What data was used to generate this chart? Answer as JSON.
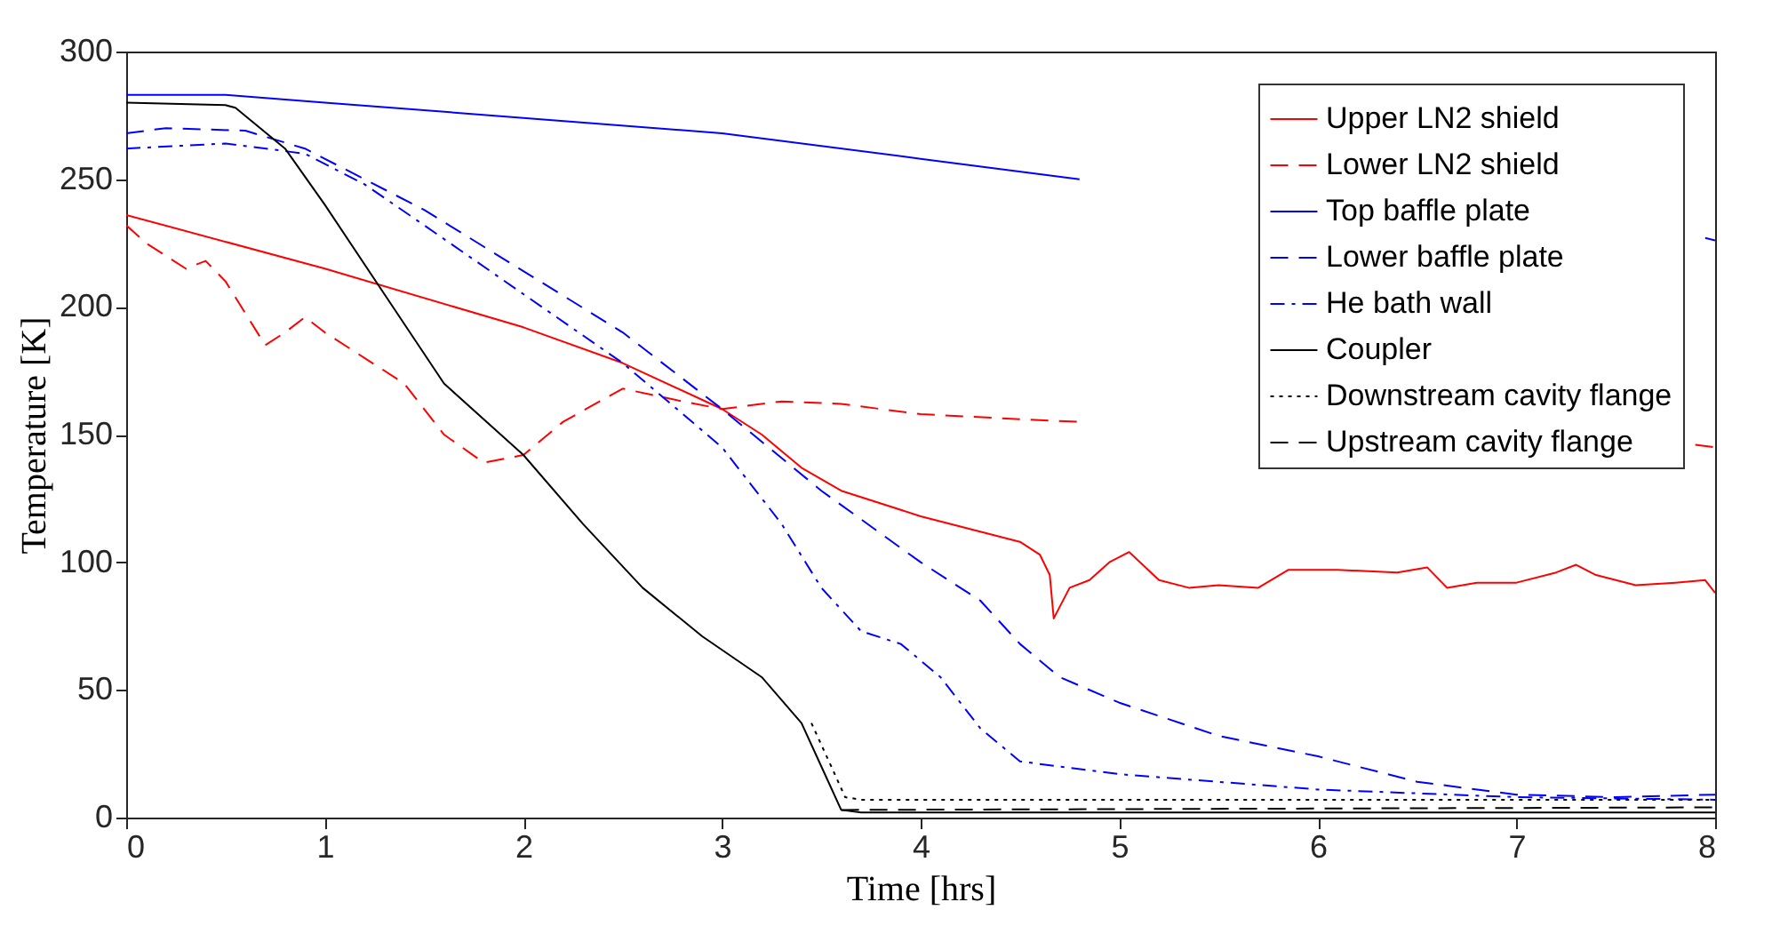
{
  "chart_data": {
    "type": "line",
    "xlabel": "Time [hrs]",
    "ylabel": "Temperature [K]",
    "xlim": [
      0,
      8
    ],
    "ylim": [
      0,
      300
    ],
    "xticks": [
      0,
      1,
      2,
      3,
      4,
      5,
      6,
      7,
      8
    ],
    "yticks": [
      0,
      50,
      100,
      150,
      200,
      250,
      300
    ],
    "grid": false,
    "legend": "top right",
    "marker": "none",
    "series": [
      {
        "name": "Upper LN2 shield",
        "color": "#ff0000",
        "line_style": "solid",
        "x": [
          0,
          1,
          2,
          2.5,
          3,
          3.2,
          3.4,
          3.6,
          4,
          4.5,
          4.6,
          4.65,
          4.67,
          4.75,
          4.85,
          4.95,
          5.05,
          5.2,
          5.35,
          5.5,
          5.7,
          5.85,
          6.1,
          6.4,
          6.55,
          6.65,
          6.8,
          7,
          7.2,
          7.3,
          7.4,
          7.6,
          7.8,
          7.95,
          8
        ],
        "values": [
          236,
          215,
          192,
          178,
          160,
          150,
          137,
          128,
          118,
          108,
          103,
          95,
          78,
          90,
          93,
          100,
          104,
          93,
          90,
          91,
          90,
          97,
          97,
          96,
          98,
          90,
          92,
          92,
          96,
          99,
          95,
          91,
          92,
          93,
          88
        ]
      },
      {
        "name": "Lower LN2 shield",
        "color": "#ff0000",
        "line_style": "dashed",
        "x": [
          0,
          0.1,
          0.3,
          0.4,
          0.5,
          0.7,
          0.8,
          0.9,
          1,
          1.2,
          1.4,
          1.6,
          1.8,
          2,
          2.2,
          2.5,
          2.8,
          3,
          3.3,
          3.6,
          4,
          4.5,
          4.8,
          6,
          7.9,
          8
        ],
        "values": [
          232,
          225,
          215,
          218,
          210,
          185,
          190,
          196,
          190,
          180,
          170,
          150,
          139,
          142,
          155,
          168,
          163,
          160,
          163,
          162,
          158,
          156,
          155,
          null,
          146,
          145
        ]
      },
      {
        "name": "Top baffle plate",
        "color": "#0000ff",
        "line_style": "solid",
        "x": [
          0,
          0.5,
          1,
          2,
          3,
          4,
          4.8,
          6,
          7.95,
          8
        ],
        "values": [
          283,
          283,
          280,
          274,
          268,
          258,
          250,
          null,
          227,
          226
        ]
      },
      {
        "name": "Lower baffle plate",
        "color": "#0000ff",
        "line_style": "dashed",
        "x": [
          0,
          0.2,
          0.6,
          0.9,
          1.2,
          1.5,
          2,
          2.5,
          3,
          3.5,
          4,
          4.3,
          4.5,
          4.7,
          5,
          5.5,
          6,
          6.5,
          7,
          7.5,
          8
        ],
        "values": [
          268,
          270,
          269,
          262,
          250,
          238,
          214,
          190,
          160,
          128,
          100,
          85,
          68,
          55,
          45,
          32,
          24,
          14,
          9,
          8,
          9
        ]
      },
      {
        "name": "He bath wall",
        "color": "#0000ff",
        "line_style": "dashdot",
        "x": [
          0,
          0.5,
          0.9,
          1.2,
          1.5,
          2,
          2.5,
          3,
          3.3,
          3.5,
          3.7,
          3.9,
          4.1,
          4.3,
          4.5,
          5,
          5.5,
          6,
          7,
          8
        ],
        "values": [
          262,
          264,
          260,
          248,
          232,
          205,
          178,
          145,
          115,
          90,
          73,
          68,
          55,
          35,
          22,
          17,
          14,
          11,
          8,
          7
        ]
      },
      {
        "name": "Coupler",
        "color": "#000000",
        "line_style": "solid",
        "x": [
          0,
          0.5,
          0.55,
          0.8,
          1,
          1.3,
          1.6,
          2,
          2.3,
          2.6,
          2.9,
          3.2,
          3.4,
          3.5,
          3.6,
          3.7,
          8
        ],
        "values": [
          280,
          279,
          278,
          262,
          240,
          205,
          170,
          142,
          115,
          90,
          71,
          55,
          37,
          20,
          3,
          2,
          2
        ]
      },
      {
        "name": "Downstream cavity flange",
        "color": "#000000",
        "line_style": "dotted",
        "x": [
          3.45,
          3.55,
          3.62,
          3.7,
          8
        ],
        "values": [
          37,
          20,
          8,
          7,
          7
        ]
      },
      {
        "name": "Upstream cavity flange",
        "color": "#000000",
        "line_style": "dashed",
        "x": [
          3.6,
          8
        ],
        "values": [
          3,
          4
        ]
      }
    ]
  }
}
